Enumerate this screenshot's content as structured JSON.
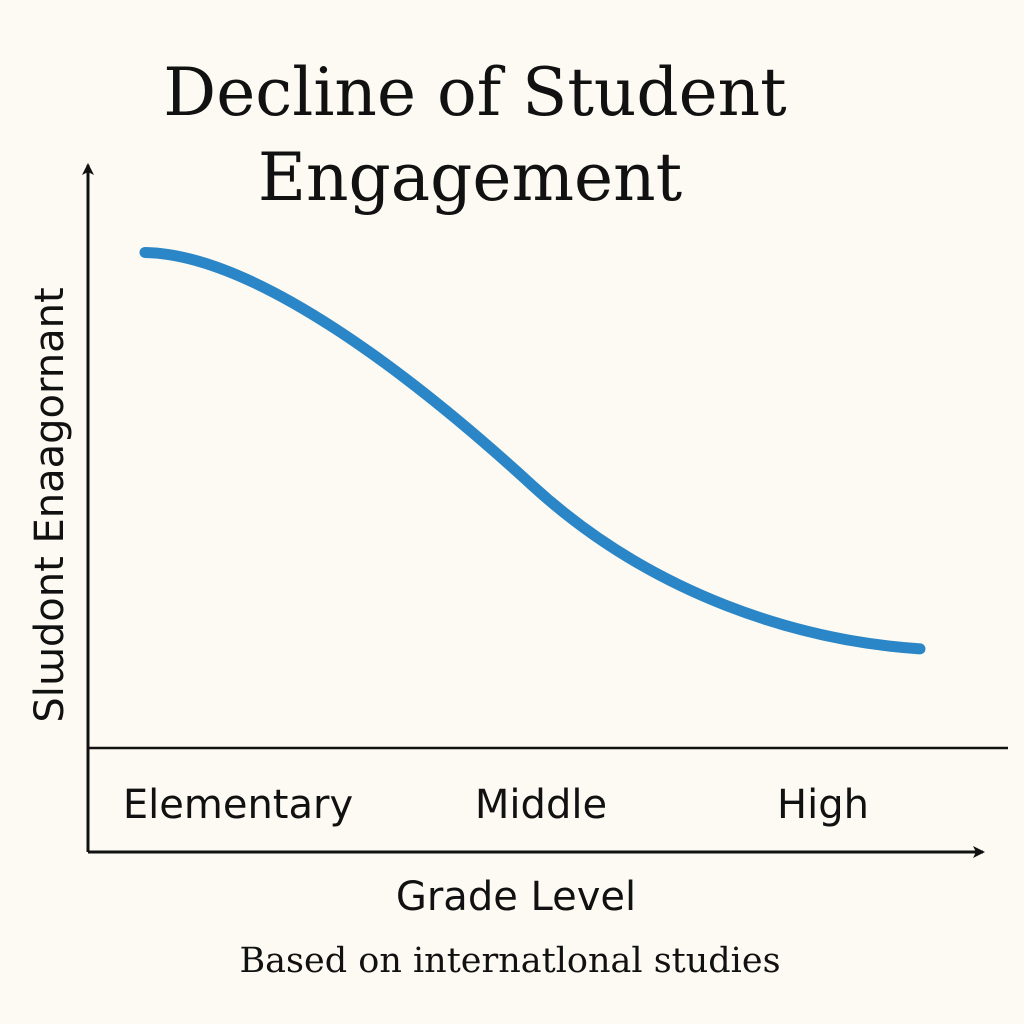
{
  "chart_data": {
    "type": "line",
    "title_lines": [
      "Decline of Student",
      "Engagement"
    ],
    "xlabel": "Grade Level",
    "ylabel": "Slɯdont Enaagornant",
    "categories": [
      "Elementary",
      "Middle",
      "High"
    ],
    "series": [
      {
        "values": [
          0.85,
          0.45,
          0.17
        ],
        "color": "#2a86c6"
      }
    ],
    "ylim": [
      0,
      1
    ],
    "grid": false,
    "legend": "none",
    "note": "Based on internatlonal studies"
  }
}
